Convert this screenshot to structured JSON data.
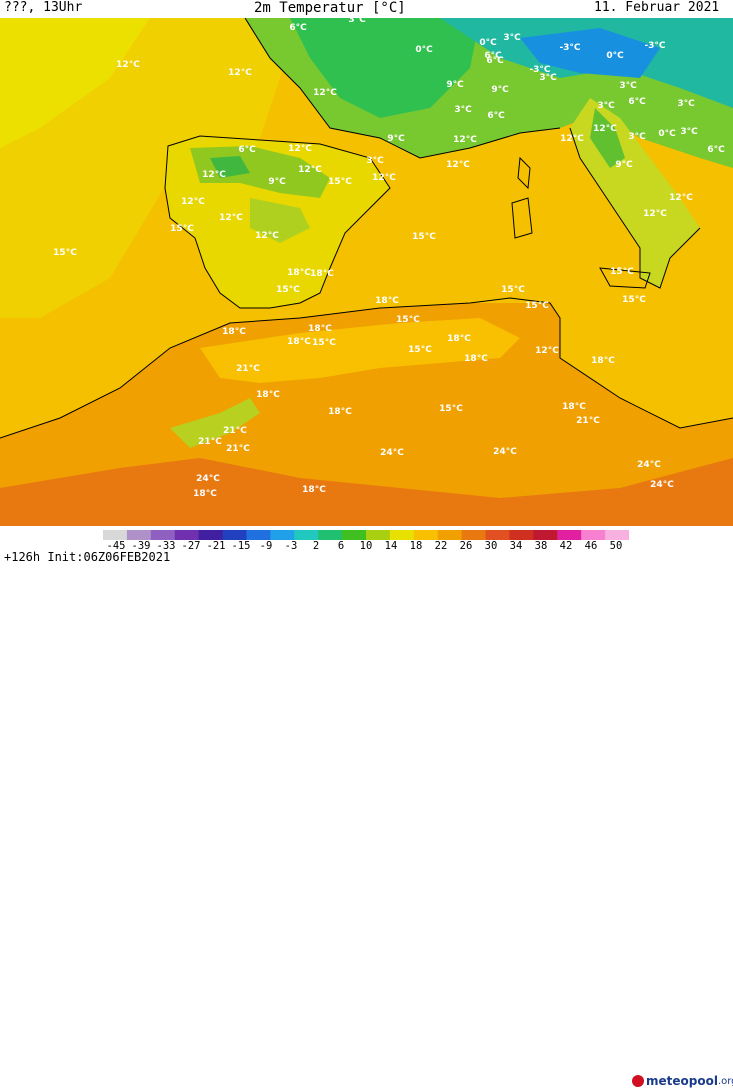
{
  "header": {
    "left": "???, 13Uhr",
    "title": "2m Temperatur [°C]",
    "date": "11. Februar 2021"
  },
  "footer": {
    "forecast": "+126h Init:06Z06FEB2021",
    "logo_main": "meteopool",
    "logo_suffix": ".org"
  },
  "legend": {
    "values": [
      "-45",
      "-39",
      "-33",
      "-27",
      "-21",
      "-15",
      "-9",
      "-3",
      "2",
      "6",
      "10",
      "14",
      "18",
      "22",
      "26",
      "30",
      "34",
      "38",
      "42",
      "46",
      "50"
    ],
    "colors": [
      "#d8d8d8",
      "#b090c8",
      "#9060c0",
      "#7030b0",
      "#4020a0",
      "#2040c0",
      "#2070e0",
      "#20a0e8",
      "#20c8c0",
      "#20c070",
      "#40c020",
      "#a8d010",
      "#e8e000",
      "#f8c000",
      "#f0a000",
      "#e87810",
      "#e05020",
      "#d03020",
      "#c01830",
      "#e020a0",
      "#f880d0",
      "#f8b0e0"
    ]
  },
  "labels": [
    {
      "t": "6°C"
    },
    {
      "t": "3°C"
    },
    {
      "t": "0°C"
    },
    {
      "t": "3°C"
    },
    {
      "t": "6°C"
    },
    {
      "t": "-3°C"
    },
    {
      "t": "-3°C"
    },
    {
      "t": "3°C"
    },
    {
      "t": "6°C"
    },
    {
      "t": "0°C"
    },
    {
      "t": "0°C"
    },
    {
      "t": "12°C"
    },
    {
      "t": "12°C"
    },
    {
      "t": "12°C"
    },
    {
      "t": "9°C"
    },
    {
      "t": "9°C"
    },
    {
      "t": "-3°C"
    },
    {
      "t": "3°C"
    },
    {
      "t": "6°C"
    },
    {
      "t": "3°C"
    },
    {
      "t": "3°C"
    },
    {
      "t": "6°C"
    },
    {
      "t": "3°C"
    },
    {
      "t": "12°C"
    },
    {
      "t": "0°C"
    },
    {
      "t": "3°C"
    },
    {
      "t": "6°C"
    },
    {
      "t": "12°C"
    },
    {
      "t": "3°C"
    },
    {
      "t": "6°C"
    },
    {
      "t": "12°C"
    },
    {
      "t": "12°C"
    },
    {
      "t": "9°C"
    },
    {
      "t": "12°C"
    },
    {
      "t": "3°C"
    },
    {
      "t": "9°C"
    },
    {
      "t": "12°C"
    },
    {
      "t": "15°C"
    },
    {
      "t": "12°C"
    },
    {
      "t": "9°C"
    },
    {
      "t": "12°C"
    },
    {
      "t": "12°C"
    },
    {
      "t": "12°C"
    },
    {
      "t": "15°C"
    },
    {
      "t": "15°C"
    },
    {
      "t": "12°C"
    },
    {
      "t": "15°C"
    },
    {
      "t": "12°C"
    },
    {
      "t": "12°C"
    },
    {
      "t": "18°C"
    },
    {
      "t": "15°C"
    },
    {
      "t": "18°C"
    },
    {
      "t": "15°C"
    },
    {
      "t": "15°C"
    },
    {
      "t": "15°C"
    },
    {
      "t": "18°C"
    },
    {
      "t": "18°C"
    },
    {
      "t": "18°C"
    },
    {
      "t": "15°C"
    },
    {
      "t": "15°C"
    },
    {
      "t": "18°C"
    },
    {
      "t": "18°C"
    },
    {
      "t": "15°C"
    },
    {
      "t": "18°C"
    },
    {
      "t": "15°C"
    },
    {
      "t": "12°C"
    },
    {
      "t": "18°C"
    },
    {
      "t": "21°C"
    },
    {
      "t": "18°C"
    },
    {
      "t": "18°C"
    },
    {
      "t": "15°C"
    },
    {
      "t": "18°C"
    },
    {
      "t": "21°C"
    },
    {
      "t": "21°C"
    },
    {
      "t": "21°C"
    },
    {
      "t": "21°C"
    },
    {
      "t": "24°C"
    },
    {
      "t": "24°C"
    },
    {
      "t": "24°C"
    },
    {
      "t": "24°C"
    },
    {
      "t": "24°C"
    },
    {
      "t": "18°C"
    },
    {
      "t": "18°C"
    }
  ]
}
